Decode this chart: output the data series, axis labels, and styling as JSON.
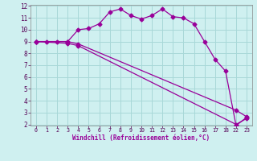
{
  "line1_x": [
    0,
    1,
    2,
    3,
    4,
    5,
    6,
    7,
    8,
    9,
    10,
    11,
    12,
    13,
    14,
    15,
    16,
    17,
    18,
    19,
    20
  ],
  "line1_y": [
    9,
    9,
    9,
    9,
    10,
    10.1,
    10.5,
    11.5,
    11.75,
    11.2,
    10.9,
    11.2,
    11.75,
    11.1,
    11.0,
    10.5,
    9.0,
    7.5,
    6.5,
    1.9,
    2.6
  ],
  "line2_x": [
    0,
    3,
    4,
    19,
    20
  ],
  "line2_y": [
    9,
    8.85,
    8.65,
    2.0,
    2.5
  ],
  "line3_x": [
    0,
    3,
    4,
    19,
    20
  ],
  "line3_y": [
    9,
    9.0,
    8.8,
    3.2,
    2.65
  ],
  "color": "#990099",
  "bg_color": "#cff0f0",
  "grid_color": "#a8d8d8",
  "xlabel": "Windchill (Refroidissement éolien,°C)",
  "ylim": [
    2,
    12
  ],
  "xlim": [
    -0.5,
    20.5
  ],
  "yticks": [
    2,
    3,
    4,
    5,
    6,
    7,
    8,
    9,
    10,
    11,
    12
  ],
  "xtick_positions": [
    0,
    1,
    2,
    3,
    4,
    5,
    6,
    7,
    8,
    9,
    10,
    11,
    12,
    13,
    14,
    15,
    16,
    17,
    18,
    19,
    20
  ],
  "xtick_labels": [
    "0",
    "1",
    "2",
    "3",
    "4",
    "5",
    "6",
    "7",
    "8",
    "9",
    "10",
    "11",
    "12",
    "13",
    "14",
    "15",
    "16",
    "17",
    "18",
    "22",
    "23"
  ],
  "marker": "D",
  "markersize": 2.5,
  "linewidth": 0.9
}
